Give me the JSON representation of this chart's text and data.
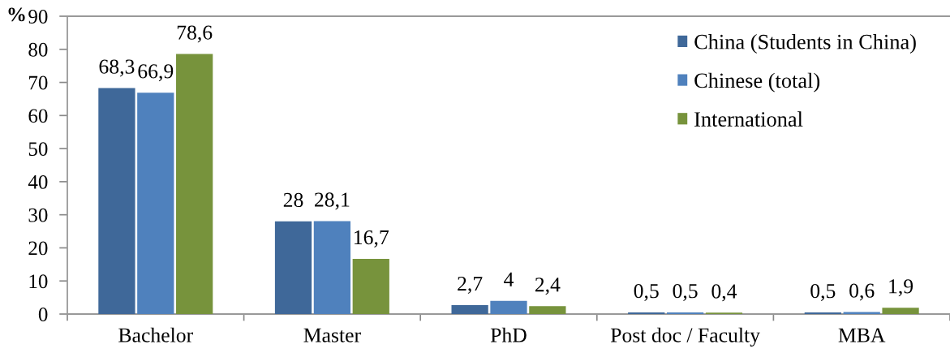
{
  "chart_data": {
    "type": "bar",
    "ylabel": "%",
    "categories": [
      "Bachelor",
      "Master",
      "PhD",
      "Post doc / Faculty",
      "MBA"
    ],
    "series": [
      {
        "name": "China (Students in China)",
        "color": "#3f6899",
        "values": [
          68.3,
          28,
          2.7,
          0.5,
          0.5
        ],
        "value_labels": [
          "68,3",
          "28",
          "2,7",
          "0,5",
          "0,5"
        ]
      },
      {
        "name": "Chinese (total)",
        "color": "#4f81bd",
        "values": [
          66.9,
          28.1,
          4,
          0.5,
          0.6
        ],
        "value_labels": [
          "66,9",
          "28,1",
          "4",
          "0,5",
          "0,6"
        ]
      },
      {
        "name": "International",
        "color": "#77933c",
        "values": [
          78.6,
          16.7,
          2.4,
          0.4,
          1.9
        ],
        "value_labels": [
          "78,6",
          "16,7",
          "2,4",
          "0,4",
          "1,9"
        ]
      }
    ],
    "ylim": [
      0,
      90
    ],
    "yticks": [
      0,
      10,
      20,
      30,
      40,
      50,
      60,
      70,
      80,
      90
    ],
    "grid": false,
    "legend": "top right"
  }
}
